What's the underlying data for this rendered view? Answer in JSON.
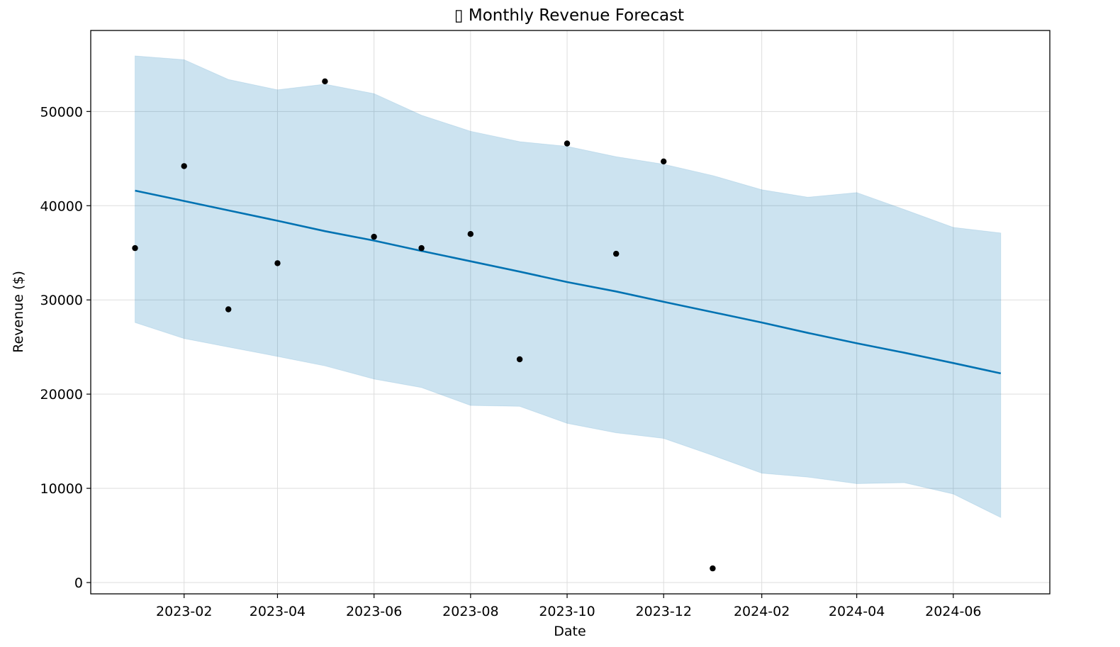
{
  "chart_data": {
    "type": "line",
    "title": "▯ Monthly Revenue Forecast",
    "xlabel": "Date",
    "ylabel": "Revenue ($)",
    "x_ticks": [
      "2023-02",
      "2023-04",
      "2023-06",
      "2023-08",
      "2023-10",
      "2023-12",
      "2024-02",
      "2024-04",
      "2024-06"
    ],
    "y_ticks": [
      0,
      10000,
      20000,
      30000,
      40000,
      50000
    ],
    "ylim": [
      -1200,
      58600
    ],
    "xlim": [
      "2022-12-04",
      "2024-08-01"
    ],
    "grid": true,
    "colors": {
      "forecast": "#0072B2",
      "band": "#0072B2",
      "points": "#000000",
      "grid": "#dddddd"
    },
    "observed": {
      "x": [
        "2023-01",
        "2023-02",
        "2023-03",
        "2023-04",
        "2023-05",
        "2023-06",
        "2023-07",
        "2023-08",
        "2023-09",
        "2023-10",
        "2023-11",
        "2023-12",
        "2024-01"
      ],
      "y": [
        35500,
        44200,
        29000,
        33900,
        53200,
        36700,
        35500,
        37000,
        23700,
        46600,
        34900,
        44700,
        1500
      ]
    },
    "forecast": {
      "x": [
        "2023-01",
        "2023-02",
        "2023-03",
        "2023-04",
        "2023-05",
        "2023-06",
        "2023-07",
        "2023-08",
        "2023-09",
        "2023-10",
        "2023-11",
        "2023-12",
        "2024-01",
        "2024-02",
        "2024-03",
        "2024-04",
        "2024-05",
        "2024-06",
        "2024-07"
      ],
      "yhat": [
        41600,
        40500,
        39500,
        38400,
        37300,
        36300,
        35200,
        34100,
        33000,
        31900,
        30900,
        29800,
        28700,
        27600,
        26500,
        25400,
        24400,
        23300,
        22200
      ],
      "yhat_upper": [
        55900,
        55500,
        53400,
        52300,
        52900,
        51900,
        49600,
        47900,
        46800,
        46300,
        45200,
        44400,
        43200,
        41700,
        40900,
        41400,
        39600,
        37700,
        37100
      ],
      "yhat_lower": [
        27600,
        25900,
        25000,
        24000,
        23000,
        21600,
        20700,
        18800,
        18700,
        16900,
        15900,
        15300,
        13500,
        11600,
        11200,
        10500,
        10600,
        9400,
        6900
      ]
    }
  }
}
